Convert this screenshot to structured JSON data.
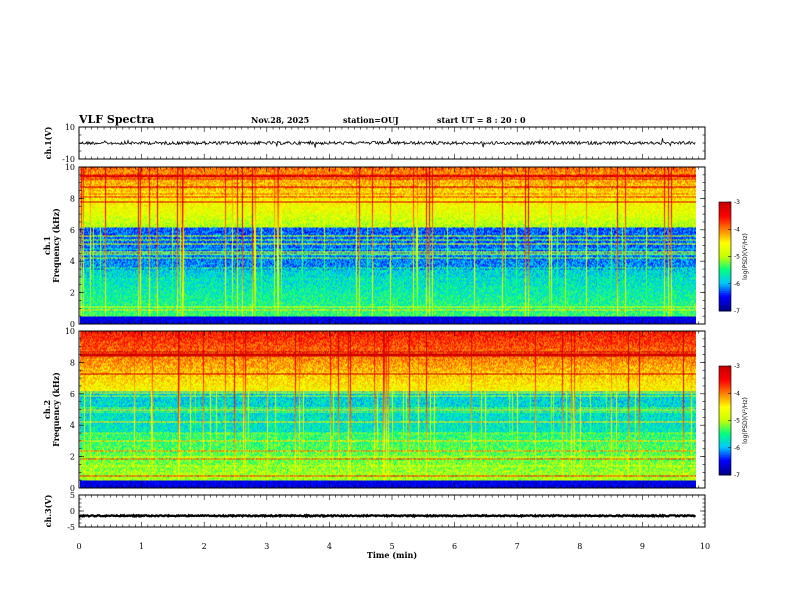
{
  "header": {
    "title": "VLF Spectra",
    "date": "Nov.28, 2025",
    "station": "station=OUJ",
    "start_time": "start UT =  8 : 20 : 0"
  },
  "chart_data": [
    {
      "type": "line",
      "name": "ch1-waveform",
      "ylabel": "ch.1(V)",
      "ylim": [
        -10,
        10
      ],
      "yticks": [
        "10",
        "-10"
      ],
      "xlim": [
        0,
        10
      ],
      "baseline": 0,
      "x_end": 9.85
    },
    {
      "type": "heatmap",
      "name": "ch1-spectrogram",
      "ylabel": "Frequency (kHz)",
      "ylabel2": "ch.1",
      "ylim": [
        0,
        10
      ],
      "yticks": [
        "0",
        "2",
        "4",
        "6",
        "8",
        "10"
      ],
      "xlim": [
        0,
        10
      ],
      "x_end": 9.85,
      "colorbar": {
        "label": "log(PSD)(V²/Hz)",
        "range": [
          -7,
          -3
        ],
        "ticks": [
          "-3",
          "-4",
          "-5",
          "-6",
          "-7"
        ]
      }
    },
    {
      "type": "heatmap",
      "name": "ch2-spectrogram",
      "ylabel": "Frequency (kHz)",
      "ylabel2": "ch.2",
      "ylim": [
        0,
        10
      ],
      "yticks": [
        "0",
        "2",
        "4",
        "6",
        "8",
        "10"
      ],
      "xlim": [
        0,
        10
      ],
      "x_end": 9.85,
      "colorbar": {
        "label": "log(PSD)(V²/Hz)",
        "range": [
          -7,
          -3
        ],
        "ticks": [
          "-3",
          "-4",
          "-5",
          "-6",
          "-7"
        ]
      }
    },
    {
      "type": "line",
      "name": "ch3-waveform",
      "ylabel": "ch.3(V)",
      "ylim": [
        -5,
        5
      ],
      "yticks": [
        "5",
        "0",
        "-5"
      ],
      "xlim": [
        0,
        10
      ],
      "baseline": -1.5,
      "x_end": 9.85,
      "xlabel": "Time (min)",
      "xticks": [
        "0",
        "1",
        "2",
        "3",
        "4",
        "5",
        "6",
        "7",
        "8",
        "9",
        "10"
      ]
    }
  ],
  "colors": {
    "axis": "#000000",
    "colormap": [
      "#00008b",
      "#0000ff",
      "#00c8ff",
      "#00ff7f",
      "#c8ff00",
      "#ffff00",
      "#ff8000",
      "#ff0000",
      "#c80000"
    ]
  }
}
